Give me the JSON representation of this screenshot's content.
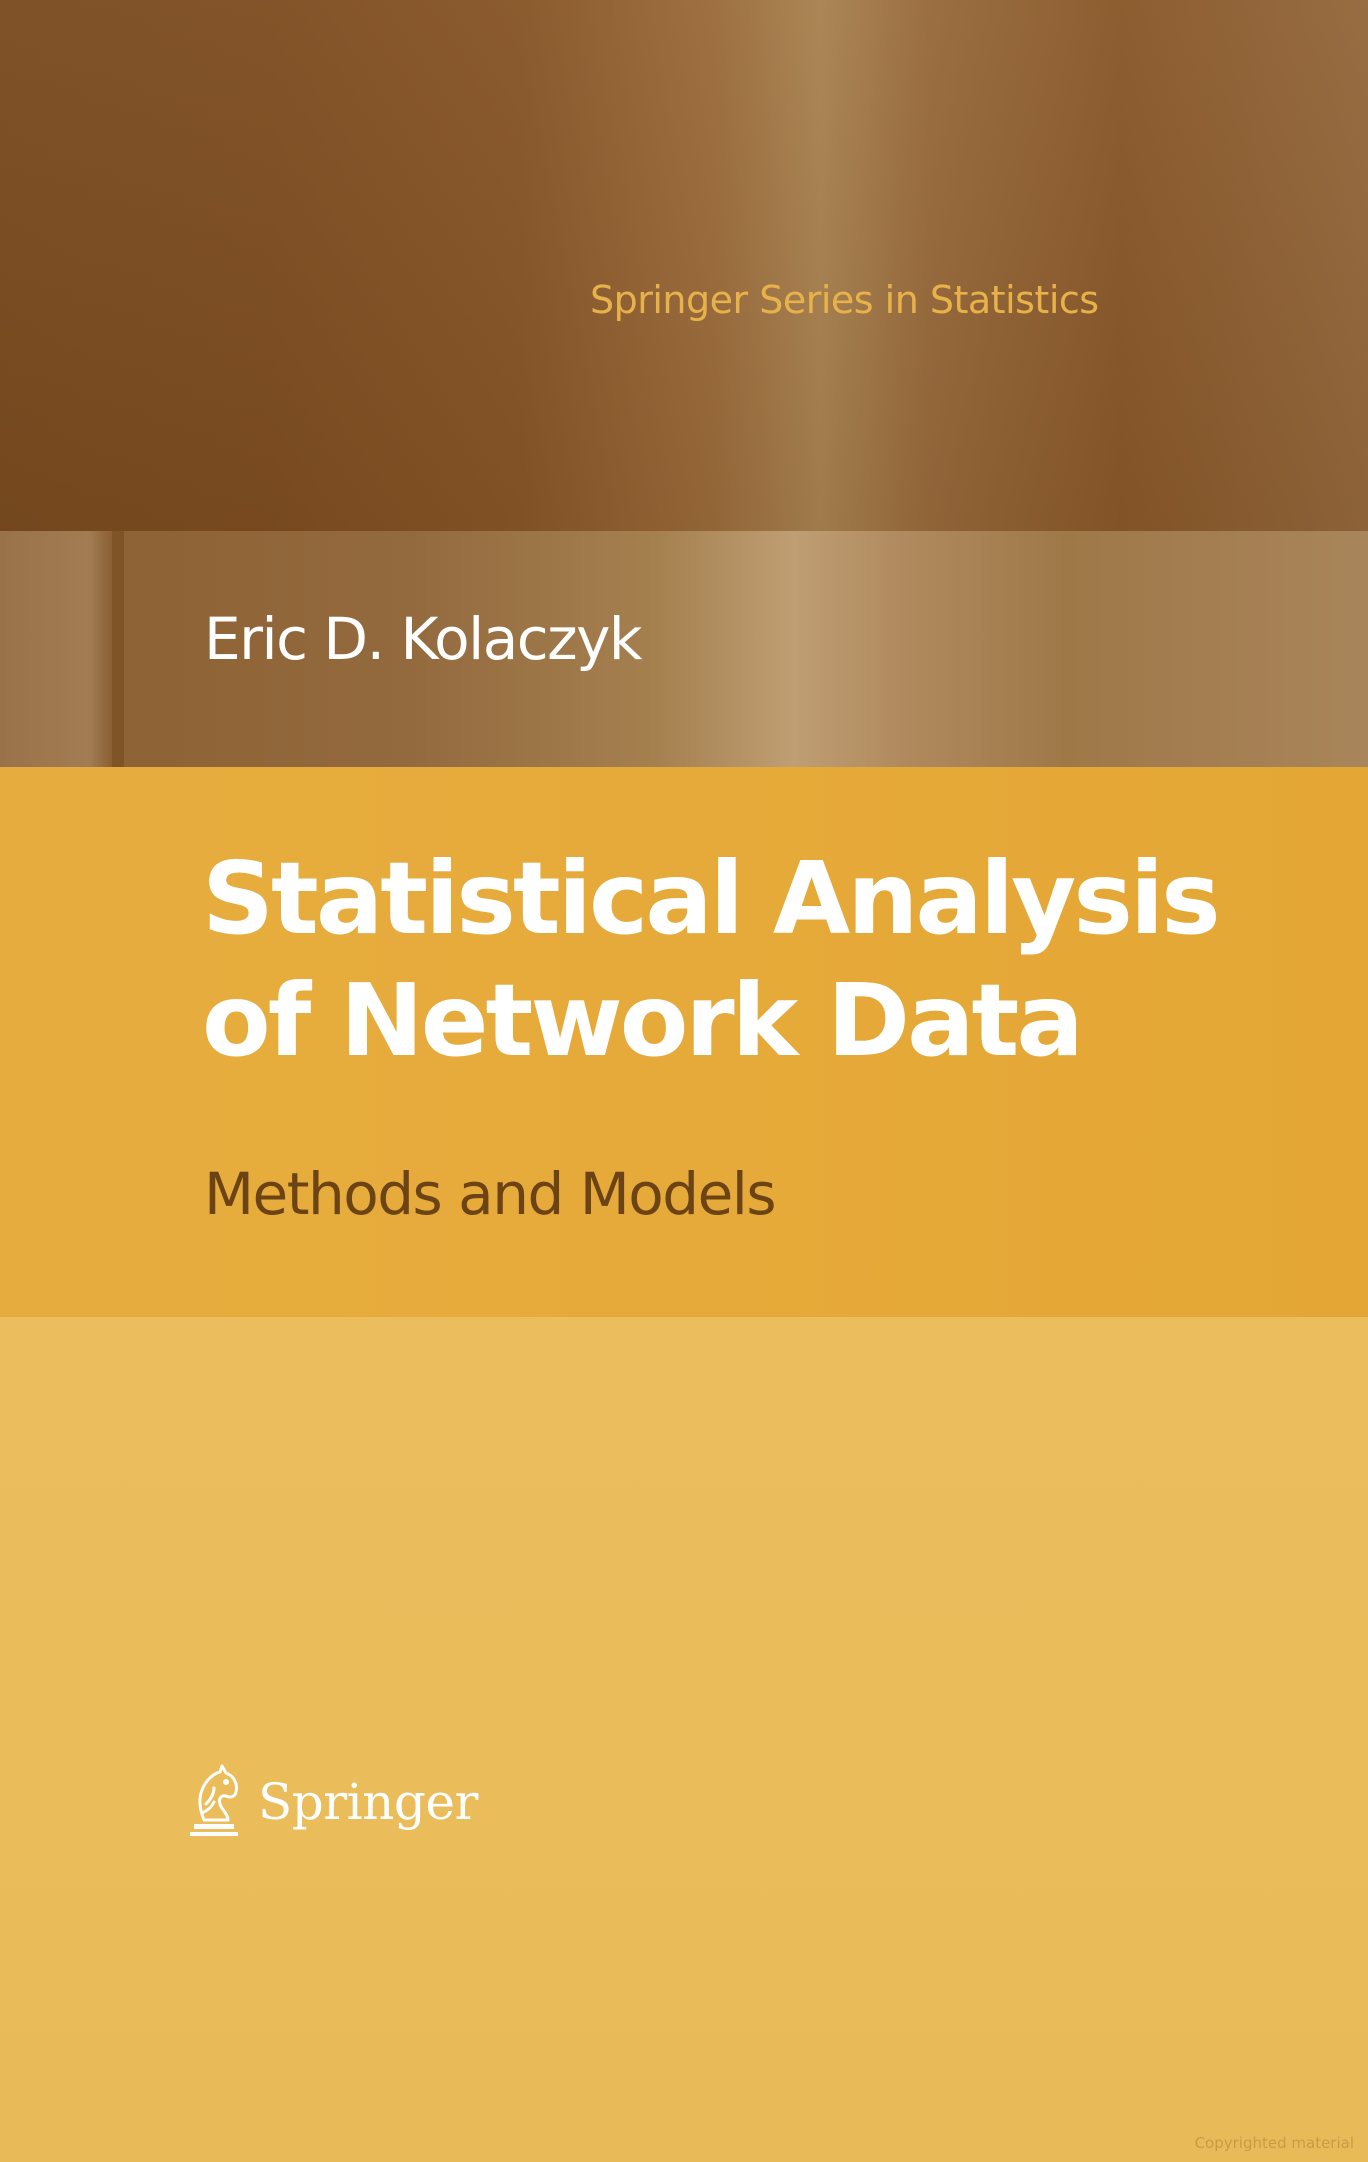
{
  "cover": {
    "series": "Springer Series in Statistics",
    "author": "Eric D. Kolaczyk",
    "title_lines": [
      "Statistical Analysis",
      "of Network Data"
    ],
    "subtitle": "Methods and Models",
    "publisher": "Springer",
    "publisher_logo": "springer-horse-icon",
    "watermark": "Copyrighted material"
  },
  "colors": {
    "top_band": "#865526",
    "author_band": "#a5804f",
    "title_band": "#e6ab3b",
    "lower_band": "#ebbd5c",
    "series_text": "#e8b24a",
    "subtitle_text": "#6b4314"
  }
}
